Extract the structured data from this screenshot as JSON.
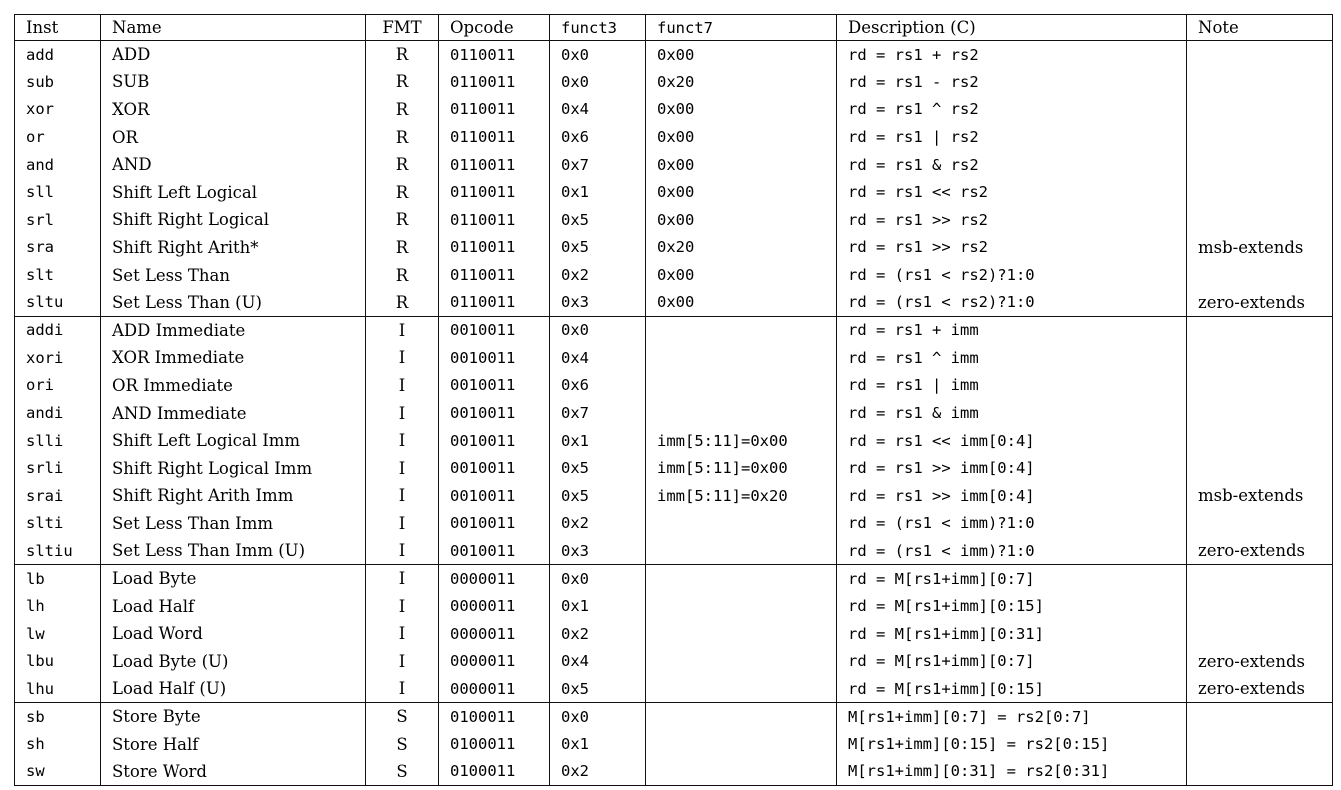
{
  "page": {
    "background_color": "#ffffff",
    "text_color": "#000000",
    "border_color": "#111111"
  },
  "table": {
    "columns": [
      "Inst",
      "Name",
      "FMT",
      "Opcode",
      "funct3",
      "funct7",
      "Description (C)",
      "Note"
    ],
    "groups": [
      [
        [
          "add",
          "ADD",
          "R",
          "0110011",
          "0x0",
          "0x00",
          "rd = rs1 + rs2",
          ""
        ],
        [
          "sub",
          "SUB",
          "R",
          "0110011",
          "0x0",
          "0x20",
          "rd = rs1 - rs2",
          ""
        ],
        [
          "xor",
          "XOR",
          "R",
          "0110011",
          "0x4",
          "0x00",
          "rd = rs1 ^ rs2",
          ""
        ],
        [
          "or",
          "OR",
          "R",
          "0110011",
          "0x6",
          "0x00",
          "rd = rs1 | rs2",
          ""
        ],
        [
          "and",
          "AND",
          "R",
          "0110011",
          "0x7",
          "0x00",
          "rd = rs1 & rs2",
          ""
        ],
        [
          "sll",
          "Shift Left Logical",
          "R",
          "0110011",
          "0x1",
          "0x00",
          "rd = rs1 << rs2",
          ""
        ],
        [
          "srl",
          "Shift Right Logical",
          "R",
          "0110011",
          "0x5",
          "0x00",
          "rd = rs1 >> rs2",
          ""
        ],
        [
          "sra",
          "Shift Right Arith*",
          "R",
          "0110011",
          "0x5",
          "0x20",
          "rd = rs1 >> rs2",
          "msb-extends"
        ],
        [
          "slt",
          "Set Less Than",
          "R",
          "0110011",
          "0x2",
          "0x00",
          "rd = (rs1 < rs2)?1:0",
          ""
        ],
        [
          "sltu",
          "Set Less Than (U)",
          "R",
          "0110011",
          "0x3",
          "0x00",
          "rd = (rs1 < rs2)?1:0",
          "zero-extends"
        ]
      ],
      [
        [
          "addi",
          "ADD Immediate",
          "I",
          "0010011",
          "0x0",
          "",
          "rd = rs1 + imm",
          ""
        ],
        [
          "xori",
          "XOR Immediate",
          "I",
          "0010011",
          "0x4",
          "",
          "rd = rs1 ^ imm",
          ""
        ],
        [
          "ori",
          "OR Immediate",
          "I",
          "0010011",
          "0x6",
          "",
          "rd = rs1 | imm",
          ""
        ],
        [
          "andi",
          "AND Immediate",
          "I",
          "0010011",
          "0x7",
          "",
          "rd = rs1 & imm",
          ""
        ],
        [
          "slli",
          "Shift Left Logical Imm",
          "I",
          "0010011",
          "0x1",
          "imm[5:11]=0x00",
          "rd = rs1 << imm[0:4]",
          ""
        ],
        [
          "srli",
          "Shift Right Logical Imm",
          "I",
          "0010011",
          "0x5",
          "imm[5:11]=0x00",
          "rd = rs1 >> imm[0:4]",
          ""
        ],
        [
          "srai",
          "Shift Right Arith Imm",
          "I",
          "0010011",
          "0x5",
          "imm[5:11]=0x20",
          "rd = rs1 >> imm[0:4]",
          "msb-extends"
        ],
        [
          "slti",
          "Set Less Than Imm",
          "I",
          "0010011",
          "0x2",
          "",
          "rd = (rs1 < imm)?1:0",
          ""
        ],
        [
          "sltiu",
          "Set Less Than Imm (U)",
          "I",
          "0010011",
          "0x3",
          "",
          "rd = (rs1 < imm)?1:0",
          "zero-extends"
        ]
      ],
      [
        [
          "lb",
          "Load Byte",
          "I",
          "0000011",
          "0x0",
          "",
          "rd = M[rs1+imm][0:7]",
          ""
        ],
        [
          "lh",
          "Load Half",
          "I",
          "0000011",
          "0x1",
          "",
          "rd = M[rs1+imm][0:15]",
          ""
        ],
        [
          "lw",
          "Load Word",
          "I",
          "0000011",
          "0x2",
          "",
          "rd = M[rs1+imm][0:31]",
          ""
        ],
        [
          "lbu",
          "Load Byte (U)",
          "I",
          "0000011",
          "0x4",
          "",
          "rd = M[rs1+imm][0:7]",
          "zero-extends"
        ],
        [
          "lhu",
          "Load Half (U)",
          "I",
          "0000011",
          "0x5",
          "",
          "rd = M[rs1+imm][0:15]",
          "zero-extends"
        ]
      ],
      [
        [
          "sb",
          "Store Byte",
          "S",
          "0100011",
          "0x0",
          "",
          "M[rs1+imm][0:7] = rs2[0:7]",
          ""
        ],
        [
          "sh",
          "Store Half",
          "S",
          "0100011",
          "0x1",
          "",
          "M[rs1+imm][0:15] = rs2[0:15]",
          ""
        ],
        [
          "sw",
          "Store Word",
          "S",
          "0100011",
          "0x2",
          "",
          "M[rs1+imm][0:31] = rs2[0:31]",
          ""
        ]
      ]
    ]
  }
}
